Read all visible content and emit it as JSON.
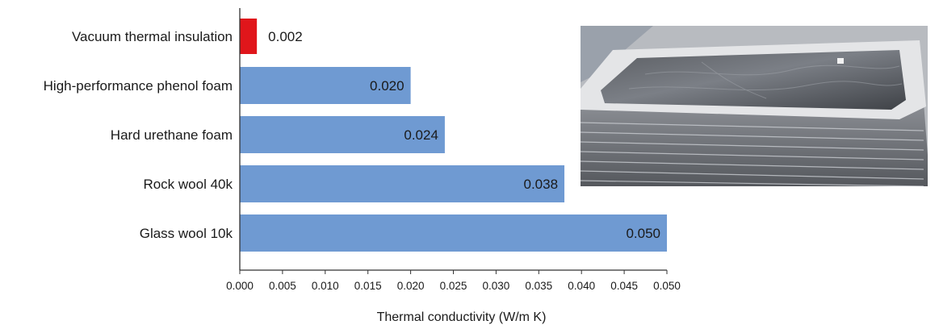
{
  "chart_data": {
    "type": "bar",
    "orientation": "horizontal",
    "categories": [
      "Vacuum thermal insulation",
      "High-performance phenol foam",
      "Hard urethane foam",
      "Rock wool 40k",
      "Glass wool 10k"
    ],
    "values": [
      0.002,
      0.02,
      0.024,
      0.038,
      0.05
    ],
    "data_labels": [
      "0.002",
      "0.020",
      "0.024",
      "0.038",
      "0.050"
    ],
    "bar_colors": [
      "#e0161b",
      "#6f9ad2",
      "#6f9ad2",
      "#6f9ad2",
      "#6f9ad2"
    ],
    "xlabel": "Thermal conductivity (W/m K)",
    "xlim": [
      0,
      0.05
    ],
    "xticks": [
      "0.000",
      "0.005",
      "0.010",
      "0.015",
      "0.020",
      "0.025",
      "0.030",
      "0.035",
      "0.040",
      "0.045",
      "0.050"
    ],
    "grid": false,
    "legend": "none"
  },
  "photo": {
    "subject": "stack of vacuum insulation panels",
    "icon": "insulation-panel-photo"
  }
}
